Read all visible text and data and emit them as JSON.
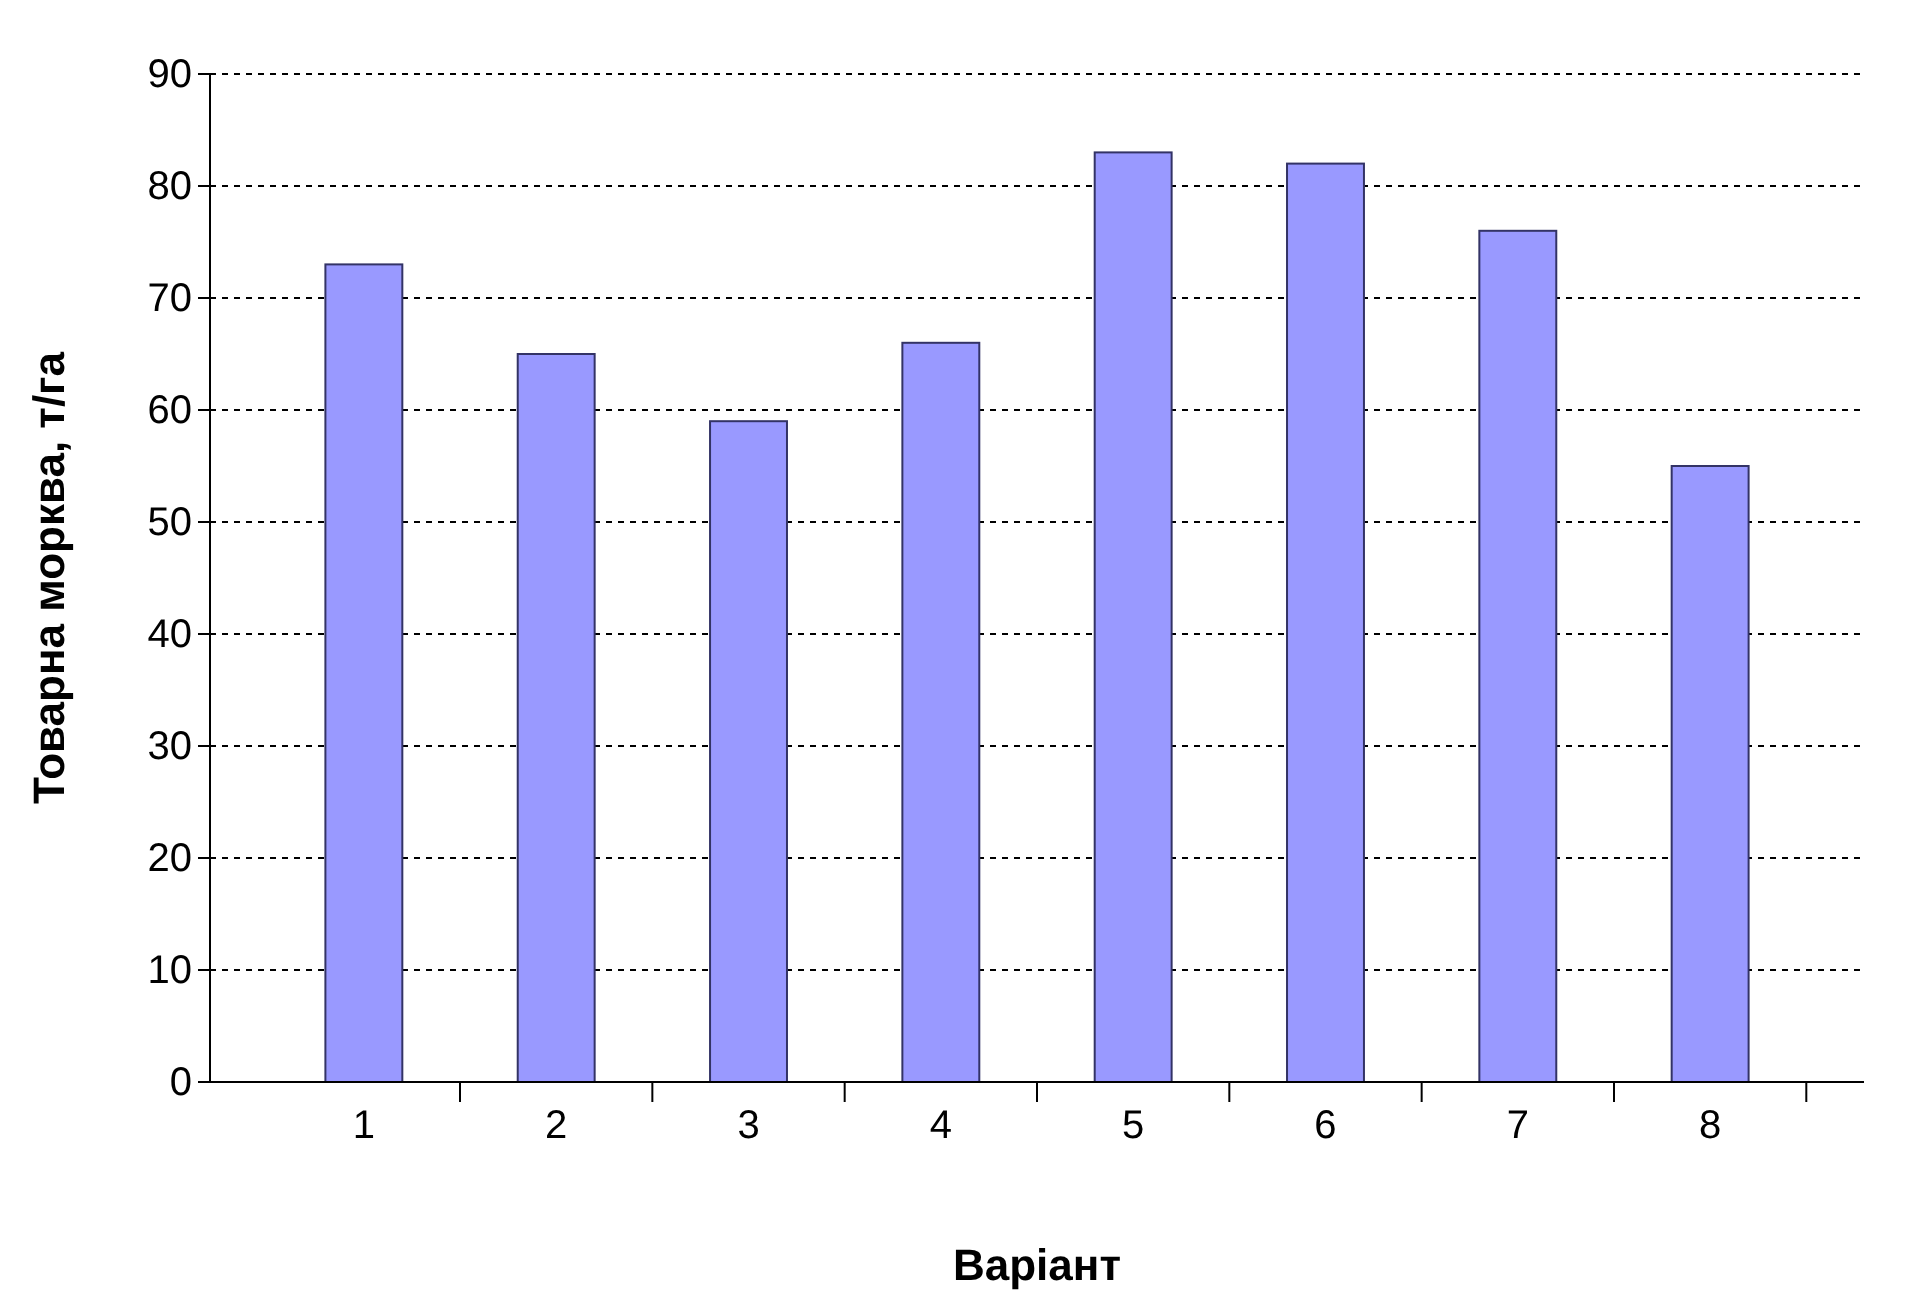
{
  "chart_data": {
    "type": "bar",
    "xlabel": "Варіант",
    "ylabel": "Товарна морква, т/га",
    "categories": [
      "1",
      "2",
      "3",
      "4",
      "5",
      "6",
      "7",
      "8"
    ],
    "values": [
      73,
      65,
      59,
      66,
      83,
      82,
      76,
      55
    ],
    "color": "#9999ff",
    "ylim": [
      0,
      90
    ],
    "yticks": [
      0,
      10,
      20,
      30,
      40,
      50,
      60,
      70,
      80,
      90
    ],
    "grid": "y"
  }
}
